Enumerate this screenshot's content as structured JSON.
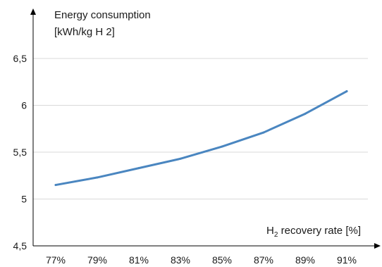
{
  "chart_data": {
    "type": "line",
    "y_title": "Energy consumption",
    "y_unit": "[kWh/kg H 2]",
    "x_title": "H2 recovery rate [%]",
    "x_title_parts": {
      "pre": "H",
      "sub": "2",
      "post": " recovery rate [%]"
    },
    "categories": [
      "77%",
      "79%",
      "81%",
      "83%",
      "85%",
      "87%",
      "89%",
      "91%"
    ],
    "x": [
      77,
      79,
      81,
      83,
      85,
      87,
      89,
      91
    ],
    "series": [
      {
        "values": [
          5.15,
          5.23,
          5.33,
          5.43,
          5.56,
          5.71,
          5.91,
          6.15
        ],
        "color": "#4a86c0"
      }
    ],
    "y_ticks": [
      {
        "value": 4.5,
        "label": "4,5"
      },
      {
        "value": 5,
        "label": "5"
      },
      {
        "value": 5.5,
        "label": "5,5"
      },
      {
        "value": 6,
        "label": "6"
      },
      {
        "value": 6.5,
        "label": "6,5"
      }
    ],
    "ylim": [
      4.5,
      6.5
    ],
    "grid": true,
    "colors": {
      "line": "#4a86c0",
      "grid": "#d9d9d9",
      "axis": "#000000"
    }
  }
}
